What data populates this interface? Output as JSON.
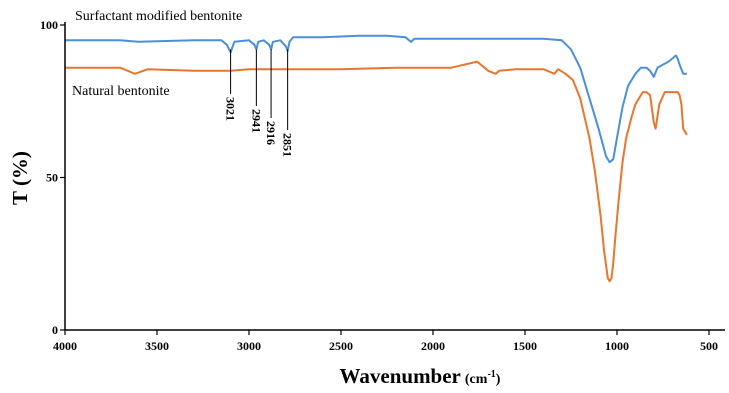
{
  "chart_data": {
    "type": "line",
    "xlabel_main": "Wavenumber",
    "xlabel_unit": "(cm",
    "xlabel_sup": "-1",
    "xlabel_close": ")",
    "ylabel": "T (%)",
    "xlim": [
      4000,
      500
    ],
    "ylim": [
      0,
      100
    ],
    "x_ticks": [
      "4000",
      "3500",
      "3000",
      "2500",
      "2000",
      "1500",
      "1000",
      "500"
    ],
    "y_ticks": [
      "0",
      "50",
      "100"
    ],
    "grid": false,
    "peak_labels": [
      "3021",
      "2941",
      "2916",
      "2851"
    ],
    "peak_positions": [
      3100,
      2960,
      2880,
      2790
    ],
    "series": [
      {
        "name": "Surfactant modified bentonite",
        "color": "#4a90d9",
        "x": [
          4000,
          3700,
          3600,
          3300,
          3150,
          3120,
          3100,
          3080,
          3000,
          2970,
          2960,
          2950,
          2920,
          2890,
          2880,
          2870,
          2830,
          2800,
          2790,
          2780,
          2760,
          2600,
          2400,
          2250,
          2150,
          2120,
          2100,
          1900,
          1600,
          1400,
          1300,
          1250,
          1200,
          1150,
          1100,
          1060,
          1040,
          1020,
          1000,
          970,
          940,
          900,
          870,
          840,
          820,
          800,
          780,
          750,
          720,
          700,
          680,
          670,
          660,
          640,
          620
        ],
        "y": [
          95,
          95,
          94.5,
          95,
          95,
          93.5,
          91,
          94.5,
          95,
          93.5,
          92,
          94.5,
          95,
          93.5,
          92,
          94.5,
          95,
          93,
          91.5,
          94.5,
          96,
          96,
          96.5,
          96.5,
          96,
          94.5,
          95.5,
          95.5,
          95.5,
          95.5,
          95,
          92,
          86,
          76,
          66,
          57,
          55,
          56,
          63,
          73,
          80,
          84,
          86,
          86,
          85,
          83,
          86,
          87,
          88,
          89,
          90,
          89,
          87,
          84,
          84
        ]
      },
      {
        "name": "Natural bentonite",
        "color": "#e8762c",
        "x": [
          4000,
          3700,
          3620,
          3550,
          3300,
          3100,
          3000,
          2800,
          2500,
          2200,
          1900,
          1760,
          1740,
          1700,
          1660,
          1640,
          1550,
          1400,
          1340,
          1320,
          1280,
          1240,
          1200,
          1150,
          1120,
          1090,
          1070,
          1050,
          1040,
          1030,
          1020,
          1010,
          990,
          970,
          950,
          920,
          900,
          880,
          860,
          840,
          820,
          800,
          790,
          770,
          740,
          700,
          670,
          660,
          650,
          640,
          620
        ],
        "y": [
          86,
          86,
          84,
          85.5,
          85,
          85,
          85.5,
          85.5,
          85.5,
          86,
          86,
          88,
          87,
          85,
          84,
          85,
          85.5,
          85.5,
          84,
          85.5,
          84,
          82,
          76,
          63,
          52,
          38,
          26,
          17,
          16,
          17,
          22,
          30,
          43,
          55,
          63,
          70,
          74,
          76,
          78,
          78,
          77,
          68,
          66,
          74,
          78,
          78,
          78,
          77,
          74,
          66,
          64
        ]
      }
    ]
  }
}
